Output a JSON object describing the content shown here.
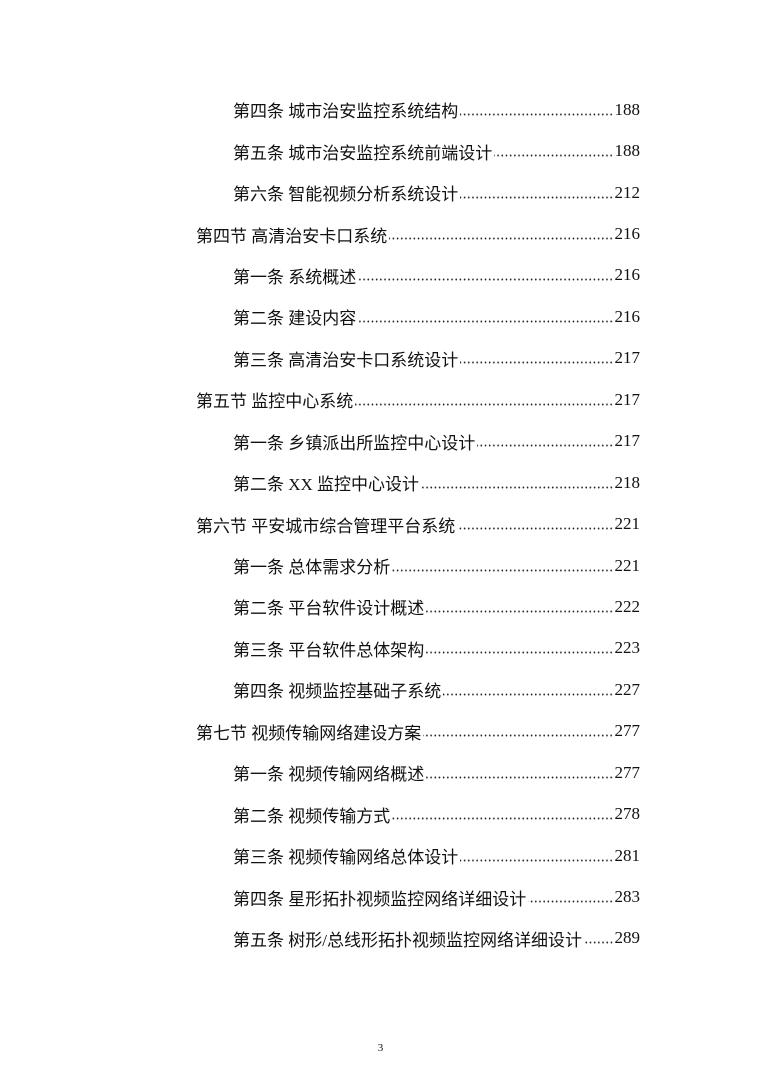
{
  "toc": [
    {
      "level": 2,
      "title": "第四条 城市治安监控系统结构",
      "page": "188"
    },
    {
      "level": 2,
      "title": "第五条 城市治安监控系统前端设计",
      "page": "188"
    },
    {
      "level": 2,
      "title": "第六条 智能视频分析系统设计",
      "page": "212"
    },
    {
      "level": 1,
      "title": "第四节 高清治安卡口系统",
      "page": "216"
    },
    {
      "level": 2,
      "title": "第一条 系统概述",
      "page": "216"
    },
    {
      "level": 2,
      "title": "第二条 建设内容",
      "page": "216"
    },
    {
      "level": 2,
      "title": "第三条 高清治安卡口系统设计",
      "page": "217"
    },
    {
      "level": 1,
      "title": "第五节 监控中心系统",
      "page": "217"
    },
    {
      "level": 2,
      "title": "第一条 乡镇派出所监控中心设计",
      "page": "217"
    },
    {
      "level": 2,
      "title": "第二条 XX 监控中心设计",
      "page": "218"
    },
    {
      "level": 1,
      "title": "第六节 平安城市综合管理平台系统",
      "page": "221"
    },
    {
      "level": 2,
      "title": "第一条 总体需求分析",
      "page": "221"
    },
    {
      "level": 2,
      "title": "第二条 平台软件设计概述",
      "page": "222"
    },
    {
      "level": 2,
      "title": "第三条 平台软件总体架构",
      "page": "223"
    },
    {
      "level": 2,
      "title": "第四条 视频监控基础子系统",
      "page": "227"
    },
    {
      "level": 1,
      "title": "第七节 视频传输网络建设方案",
      "page": "277"
    },
    {
      "level": 2,
      "title": "第一条 视频传输网络概述",
      "page": "277"
    },
    {
      "level": 2,
      "title": "第二条 视频传输方式",
      "page": "278"
    },
    {
      "level": 2,
      "title": "第三条 视频传输网络总体设计",
      "page": "281"
    },
    {
      "level": 2,
      "title": "第四条 星形拓扑视频监控网络详细设计",
      "page": "283"
    },
    {
      "level": 2,
      "title": "第五条 树形/总线形拓扑视频监控网络详细设计",
      "page": "289"
    }
  ],
  "footer": {
    "page_number": "3"
  }
}
